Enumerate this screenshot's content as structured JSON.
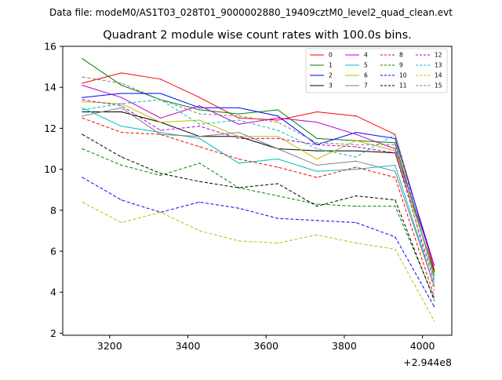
{
  "chart_data": {
    "type": "line",
    "suptitle": "Data file: modeM0/AS1T03_028T01_9000002880_19409cztM0_level2_quad_clean.evt",
    "title": "Quadrant 2 module wise count rates with 100.0s bins.",
    "xlabel": "",
    "ylabel": "",
    "x_offset_label": "+2.944e8",
    "xlim": [
      3080,
      4075
    ],
    "ylim": [
      1.9,
      16.0
    ],
    "x_ticks": [
      3200,
      3400,
      3600,
      3800,
      4000
    ],
    "y_ticks": [
      2,
      4,
      6,
      8,
      10,
      12,
      14,
      16
    ],
    "x": [
      3130,
      3230,
      3330,
      3430,
      3530,
      3630,
      3730,
      3830,
      3930,
      4030
    ],
    "series": [
      {
        "name": "0",
        "color": "#ff0000",
        "dash": "solid",
        "values": [
          14.2,
          14.7,
          14.4,
          13.5,
          12.5,
          12.4,
          12.8,
          12.6,
          11.7,
          5.1
        ]
      },
      {
        "name": "1",
        "color": "#008000",
        "dash": "solid",
        "values": [
          15.4,
          14.1,
          13.4,
          12.9,
          12.7,
          12.9,
          11.5,
          11.4,
          11.3,
          4.8
        ]
      },
      {
        "name": "2",
        "color": "#0000ff",
        "dash": "solid",
        "values": [
          13.5,
          13.7,
          13.7,
          13.0,
          13.0,
          12.6,
          11.2,
          11.8,
          11.5,
          5.3
        ]
      },
      {
        "name": "3",
        "color": "#000000",
        "dash": "solid",
        "values": [
          12.8,
          12.8,
          12.3,
          11.6,
          11.6,
          11.0,
          10.9,
          10.9,
          10.8,
          5.0
        ]
      },
      {
        "name": "4",
        "color": "#c000c0",
        "dash": "solid",
        "values": [
          14.1,
          13.5,
          12.5,
          13.1,
          12.2,
          12.5,
          12.3,
          11.7,
          11.0,
          5.3
        ]
      },
      {
        "name": "5",
        "color": "#00bfbf",
        "dash": "solid",
        "values": [
          13.0,
          12.1,
          11.8,
          11.5,
          10.3,
          10.5,
          9.9,
          10.0,
          10.2,
          4.3
        ]
      },
      {
        "name": "6",
        "color": "#bfbf00",
        "dash": "solid",
        "values": [
          13.3,
          13.2,
          12.3,
          12.4,
          11.6,
          11.6,
          10.5,
          11.4,
          10.9,
          4.9
        ]
      },
      {
        "name": "7",
        "color": "#808080",
        "dash": "solid",
        "values": [
          12.6,
          13.0,
          11.7,
          11.6,
          11.8,
          11.0,
          10.2,
          10.4,
          9.9,
          4.3
        ]
      },
      {
        "name": "8",
        "color": "#ff0000",
        "dash": "dashed",
        "values": [
          12.5,
          11.8,
          11.7,
          11.1,
          10.5,
          10.1,
          9.6,
          10.1,
          9.6,
          3.8
        ]
      },
      {
        "name": "9",
        "color": "#008000",
        "dash": "dashed",
        "values": [
          11.0,
          10.2,
          9.7,
          10.3,
          9.1,
          8.7,
          8.3,
          8.2,
          8.2,
          3.7
        ]
      },
      {
        "name": "10",
        "color": "#0000ff",
        "dash": "dashed",
        "values": [
          9.6,
          8.5,
          7.9,
          8.4,
          8.1,
          7.6,
          7.5,
          7.4,
          6.7,
          3.3
        ]
      },
      {
        "name": "11",
        "color": "#000000",
        "dash": "dashed",
        "values": [
          11.7,
          10.6,
          9.8,
          9.4,
          9.1,
          9.3,
          8.2,
          8.7,
          8.5,
          3.6
        ]
      },
      {
        "name": "12",
        "color": "#c000c0",
        "dash": "dashed",
        "values": [
          13.4,
          13.1,
          11.9,
          12.1,
          11.5,
          11.5,
          11.2,
          11.1,
          10.8,
          4.5
        ]
      },
      {
        "name": "13",
        "color": "#00bfbf",
        "dash": "dashed",
        "values": [
          12.9,
          13.2,
          13.4,
          12.2,
          12.4,
          11.9,
          11.0,
          10.6,
          11.7,
          4.6
        ]
      },
      {
        "name": "14",
        "color": "#bfbf00",
        "dash": "dashed",
        "values": [
          8.4,
          7.4,
          7.9,
          7.0,
          6.5,
          6.4,
          6.8,
          6.4,
          6.1,
          2.6
        ]
      },
      {
        "name": "15",
        "color": "#808080",
        "dash": "dashed",
        "values": [
          14.5,
          14.2,
          13.4,
          12.7,
          12.6,
          12.3,
          11.3,
          11.2,
          11.2,
          4.1
        ]
      }
    ],
    "legend_placement": "top-right",
    "legend_columns": 4,
    "grid": false
  }
}
